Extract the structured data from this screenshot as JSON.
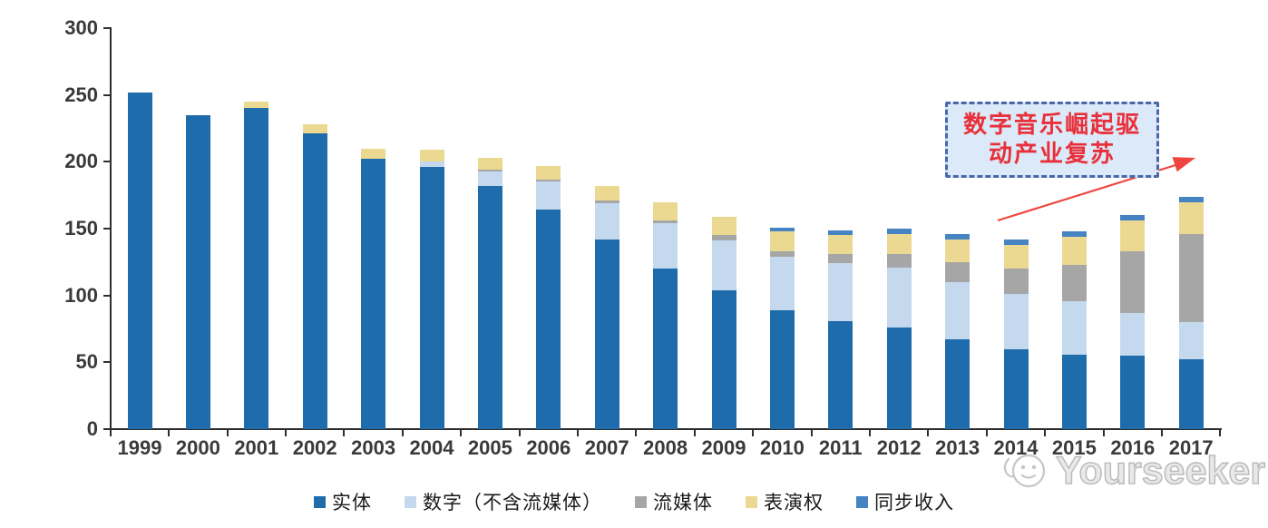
{
  "chart_data": {
    "type": "bar",
    "stacked": true,
    "title": "",
    "categories": [
      "1999",
      "2000",
      "2001",
      "2002",
      "2003",
      "2004",
      "2005",
      "2006",
      "2007",
      "2008",
      "2009",
      "2010",
      "2011",
      "2012",
      "2013",
      "2014",
      "2015",
      "2016",
      "2017"
    ],
    "series": [
      {
        "name": "实体",
        "color": "#1e6cab",
        "values": [
          252,
          235,
          240,
          221,
          202,
          196,
          182,
          164,
          142,
          120,
          104,
          89,
          81,
          76,
          67,
          60,
          56,
          55,
          52
        ]
      },
      {
        "name": "数字（不含流媒体）",
        "color": "#c4d9ee",
        "values": [
          0,
          0,
          0,
          0,
          0,
          4,
          11,
          21,
          27,
          34,
          37,
          40,
          43,
          45,
          43,
          41,
          40,
          32,
          28
        ]
      },
      {
        "name": "流媒体",
        "color": "#a6a6a6",
        "values": [
          0,
          0,
          0,
          0,
          0,
          0,
          1,
          2,
          2,
          2,
          4,
          4,
          7,
          10,
          15,
          19,
          27,
          46,
          66
        ]
      },
      {
        "name": "表演权",
        "color": "#ebd992",
        "values": [
          0,
          0,
          5,
          7,
          8,
          9,
          9,
          10,
          11,
          14,
          14,
          15,
          14,
          15,
          17,
          18,
          21,
          23,
          24
        ]
      },
      {
        "name": "同步收入",
        "color": "#4583c2",
        "values": [
          0,
          0,
          0,
          0,
          0,
          0,
          0,
          0,
          0,
          0,
          0,
          3,
          4,
          4,
          4,
          4,
          4,
          4,
          4
        ]
      }
    ],
    "y_ticks": [
      0,
      50,
      100,
      150,
      200,
      250,
      300
    ],
    "ylim": [
      0,
      300
    ],
    "xlabel": "",
    "ylabel": "",
    "grid": false,
    "legend_position": "bottom"
  },
  "annotation": {
    "line1": "数字音乐崛起驱",
    "line2": "动产业复苏",
    "text_color": "#e8303a",
    "border_color": "#4a68a8",
    "bg_color": "#dce9f8",
    "arrow_color": "#f0453f"
  },
  "watermark": {
    "text": "Yourseeker"
  }
}
